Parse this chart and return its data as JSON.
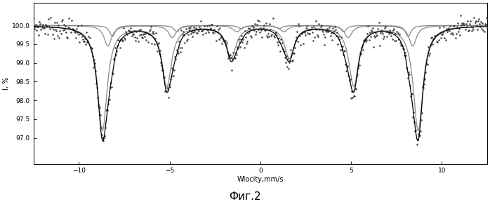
{
  "title": "Фиг.2",
  "xlabel": "Wlocity,mm/s",
  "ylabel": "I, %",
  "xlim": [
    -12.5,
    12.5
  ],
  "ylim": [
    96.3,
    100.6
  ],
  "yticks": [
    97.0,
    97.5,
    98.0,
    98.5,
    99.0,
    99.5,
    100.0
  ],
  "xticks": [
    -10,
    -5,
    0,
    5,
    10
  ],
  "background_color": "#ffffff",
  "line_color": "#000000",
  "scatter_color": "#333333",
  "noise_std": 0.13,
  "n_points": 600,
  "comp1_centers": [
    -8.7,
    -5.15,
    -1.6,
    1.6,
    5.15,
    8.7
  ],
  "comp1_depths": [
    2.8,
    1.6,
    0.85,
    0.85,
    1.6,
    2.8
  ],
  "comp1_widths": [
    0.32,
    0.32,
    0.32,
    0.32,
    0.32,
    0.32
  ],
  "comp2_centers": [
    -8.4,
    -4.85,
    -1.3,
    1.3,
    4.85,
    8.4
  ],
  "comp2_depths": [
    0.55,
    0.32,
    0.17,
    0.17,
    0.32,
    0.55
  ],
  "comp2_widths": [
    0.25,
    0.25,
    0.25,
    0.25,
    0.25,
    0.25
  ],
  "comp3_centers": [
    -8.15,
    -4.6,
    -1.05,
    1.05,
    4.6,
    8.15
  ],
  "comp3_depths": [
    0.3,
    0.17,
    0.09,
    0.09,
    0.17,
    0.3
  ],
  "comp3_widths": [
    0.18,
    0.18,
    0.18,
    0.18,
    0.18,
    0.18
  ]
}
